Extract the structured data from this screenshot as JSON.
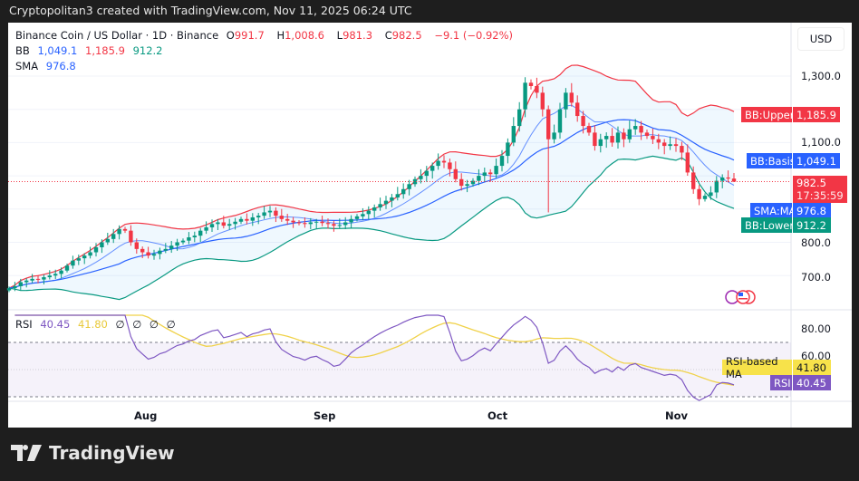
{
  "header": {
    "attribution": "Cryptopolitan3 created with TradingView.com, Nov 11, 2025 06:24 UTC"
  },
  "symbol": {
    "title": "Binance Coin / US Dollar · 1D · Binance",
    "open_label": "O",
    "open": "991.7",
    "high_label": "H",
    "high": "1,008.6",
    "low_label": "L",
    "low": "981.3",
    "close_label": "C",
    "close": "982.5",
    "change": "−9.1 (−0.92%)"
  },
  "indicators": {
    "bb": {
      "label": "BB",
      "basis": "1,049.1",
      "upper": "1,185.9",
      "lower": "912.2"
    },
    "sma": {
      "label": "SMA",
      "value": "976.8"
    },
    "rsi": {
      "label": "RSI",
      "value": "40.45",
      "ma": "41.80",
      "extras": [
        "∅",
        "∅",
        "∅",
        "∅"
      ]
    }
  },
  "price_axis": {
    "currency": "USD",
    "ticks": [
      "1,300.0",
      "1,100.0",
      "800.0",
      "700.0"
    ],
    "tags": {
      "bb_upper": {
        "label": "BB:Upper",
        "value": "1,185.9"
      },
      "bb_basis": {
        "label": "BB:Basis",
        "value": "1,049.1"
      },
      "last_price": {
        "value": "982.5",
        "countdown": "17:35:59"
      },
      "sma_ma": {
        "label": "SMA:MA",
        "value": "976.8"
      },
      "bb_lower": {
        "label": "BB:Lower",
        "value": "912.2"
      }
    }
  },
  "rsi_axis": {
    "ticks": [
      "80.00",
      "60.00"
    ],
    "tags": {
      "rsi_ma": {
        "label": "RSI-based MA",
        "value": "41.80"
      },
      "rsi": {
        "label": "RSI",
        "value": "40.45"
      }
    }
  },
  "time_axis": {
    "labels": [
      "Aug",
      "Sep",
      "Oct",
      "Nov"
    ]
  },
  "brand": {
    "name": "TradingView"
  },
  "colors": {
    "up": "#089981",
    "down": "#f23645",
    "bb_upper": "#f23645",
    "bb_lower": "#089981",
    "bb_basis": "#2962ff",
    "sma": "#2962ff",
    "rsi": "#7e57c2",
    "rsi_ma": "#f0d24a"
  },
  "chart_data": {
    "type": "candlestick",
    "interval": "1D",
    "start_date": "2025-07-09",
    "end_date": "2025-11-11",
    "ylim": [
      620,
      1380
    ],
    "rsi_ylim": [
      20,
      90
    ],
    "closes": [
      662,
      668,
      680,
      685,
      690,
      688,
      695,
      700,
      705,
      715,
      730,
      745,
      752,
      760,
      770,
      785,
      800,
      810,
      825,
      840,
      835,
      800,
      780,
      770,
      760,
      765,
      775,
      780,
      790,
      800,
      805,
      815,
      820,
      835,
      845,
      855,
      860,
      850,
      855,
      862,
      870,
      865,
      875,
      880,
      890,
      895,
      880,
      870,
      865,
      860,
      858,
      855,
      860,
      862,
      858,
      855,
      850,
      852,
      860,
      870,
      878,
      885,
      895,
      905,
      915,
      925,
      935,
      945,
      960,
      975,
      990,
      1000,
      1015,
      1030,
      1045,
      1040,
      1020,
      990,
      970,
      975,
      985,
      1000,
      1010,
      1005,
      1030,
      1060,
      1100,
      1150,
      1200,
      1280,
      1270,
      1250,
      1200,
      1110,
      1130,
      1200,
      1250,
      1220,
      1180,
      1150,
      1130,
      1090,
      1110,
      1120,
      1100,
      1130,
      1110,
      1140,
      1150,
      1130,
      1120,
      1110,
      1100,
      1090,
      1095,
      1090,
      1070,
      1010,
      960,
      930,
      940,
      950,
      985,
      995,
      991.7,
      982.5
    ],
    "last_candle": {
      "open": 991.7,
      "high": 1008.6,
      "low": 981.3,
      "close": 982.5
    }
  }
}
